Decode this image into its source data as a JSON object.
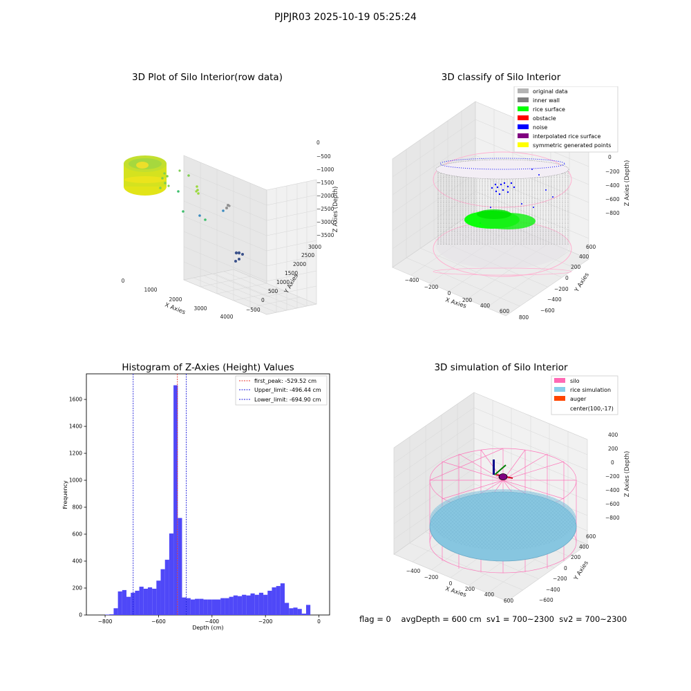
{
  "suptitle": "PJPJR03 2025-10-19 05:25:24",
  "status_line": "flag = 0    avgDepth = 600 cm  sv1 = 700~2300  sv2 = 700~2300",
  "colors": {
    "histogram_bar": "#4f48f8",
    "first_peak_line": "#e8332a",
    "limit_lines": "#1a1adb",
    "pane_left": "#e8e8e8",
    "pane_right": "#f0f0f0",
    "pane_floor": "#ebebeb",
    "silo_wire": "#ff7ab8",
    "rice_simulation": "#87c6e0",
    "rice_surface": "#00ff00",
    "inner_wall": "#7f7f7f",
    "noise": "#0000ff"
  },
  "chart_data": [
    {
      "type": "scatter3d",
      "title": "3D Plot of Silo Interior(row data)",
      "xlabel": "X Axies",
      "ylabel": "Y Axies",
      "zlabel": "Z Axies (Depth)",
      "x_ticks": [
        "0",
        "1000",
        "2000",
        "3000",
        "4000"
      ],
      "y_ticks": [
        "−500",
        "0",
        "500",
        "1000",
        "1500",
        "2000",
        "2500",
        "3000"
      ],
      "z_ticks": [
        "0",
        "−500",
        "−1000",
        "−1500",
        "−2000",
        "−2500",
        "−3000",
        "−3500"
      ],
      "colormap": "viridis"
    },
    {
      "type": "scatter3d",
      "title": "3D classify of Silo Interior",
      "xlabel": "X Axies",
      "ylabel": "Y Axies",
      "zlabel": "Z Axies (Depth)",
      "x_ticks": [
        "−400",
        "−200",
        "0",
        "200",
        "400",
        "600",
        "800"
      ],
      "y_ticks": [
        "−600",
        "−400",
        "−200",
        "0",
        "200",
        "400",
        "600"
      ],
      "z_ticks": [
        "200",
        "0",
        "−200",
        "−400",
        "−600",
        "−800"
      ],
      "legend": [
        {
          "label": "original data",
          "color": "#b4b4b4"
        },
        {
          "label": "inner wall",
          "color": "#7f7f7f"
        },
        {
          "label": "rice surface",
          "color": "#00ff00"
        },
        {
          "label": "obstacle",
          "color": "#ff0000"
        },
        {
          "label": "noise",
          "color": "#0000ff"
        },
        {
          "label": "interpolated rice surface",
          "color": "#800080"
        },
        {
          "label": "symmetric generated points",
          "color": "#ffff00"
        }
      ]
    },
    {
      "type": "bar",
      "title": "Histogram of Z-Axies (Height) Values",
      "xlabel": "Depth (cm)",
      "ylabel": "Frequency",
      "xlim": [
        -870,
        40
      ],
      "ylim": [
        0,
        1790
      ],
      "x_ticks": [
        -800,
        -600,
        -400,
        -200,
        0
      ],
      "x_tick_labels": [
        "−800",
        "−600",
        "−400",
        "−200",
        "0"
      ],
      "y_ticks": [
        0,
        200,
        400,
        600,
        800,
        1000,
        1200,
        1400,
        1600
      ],
      "bin_width": 16,
      "bin_edges_start": -800,
      "values": [
        3,
        5,
        50,
        175,
        185,
        135,
        165,
        180,
        210,
        195,
        205,
        195,
        255,
        340,
        410,
        605,
        1705,
        720,
        130,
        125,
        115,
        120,
        120,
        115,
        115,
        115,
        115,
        125,
        125,
        135,
        145,
        140,
        150,
        145,
        160,
        150,
        165,
        150,
        180,
        205,
        215,
        235,
        90,
        50,
        55,
        45,
        10,
        75
      ],
      "vlines": [
        {
          "label": "first_peak: -529.52 cm",
          "x": -529.52,
          "style": "first_peak"
        },
        {
          "label": "Upper_limit: -496.44 cm",
          "x": -496.44,
          "style": "limit"
        },
        {
          "label": "Lower_limit: -694.90 cm",
          "x": -694.9,
          "style": "limit"
        }
      ],
      "legend_position": "top-right"
    },
    {
      "type": "surface3d",
      "title": "3D simulation of Silo Interior",
      "xlabel": "X Axies",
      "ylabel": "Y Axies",
      "zlabel": "Z Axies (Depth)",
      "x_ticks": [
        "−400",
        "−200",
        "0",
        "200",
        "400",
        "600"
      ],
      "y_ticks": [
        "−600",
        "−400",
        "−200",
        "0",
        "200",
        "400",
        "600"
      ],
      "z_ticks": [
        "400",
        "200",
        "0",
        "−200",
        "−400",
        "−600",
        "−800"
      ],
      "legend": [
        {
          "label": "silo",
          "color": "#ff69b4"
        },
        {
          "label": "rice simulation",
          "color": "#87ceeb"
        },
        {
          "label": "auger",
          "color": "#ff4500"
        },
        {
          "label": "center(100,-17)",
          "color": ""
        }
      ]
    }
  ]
}
